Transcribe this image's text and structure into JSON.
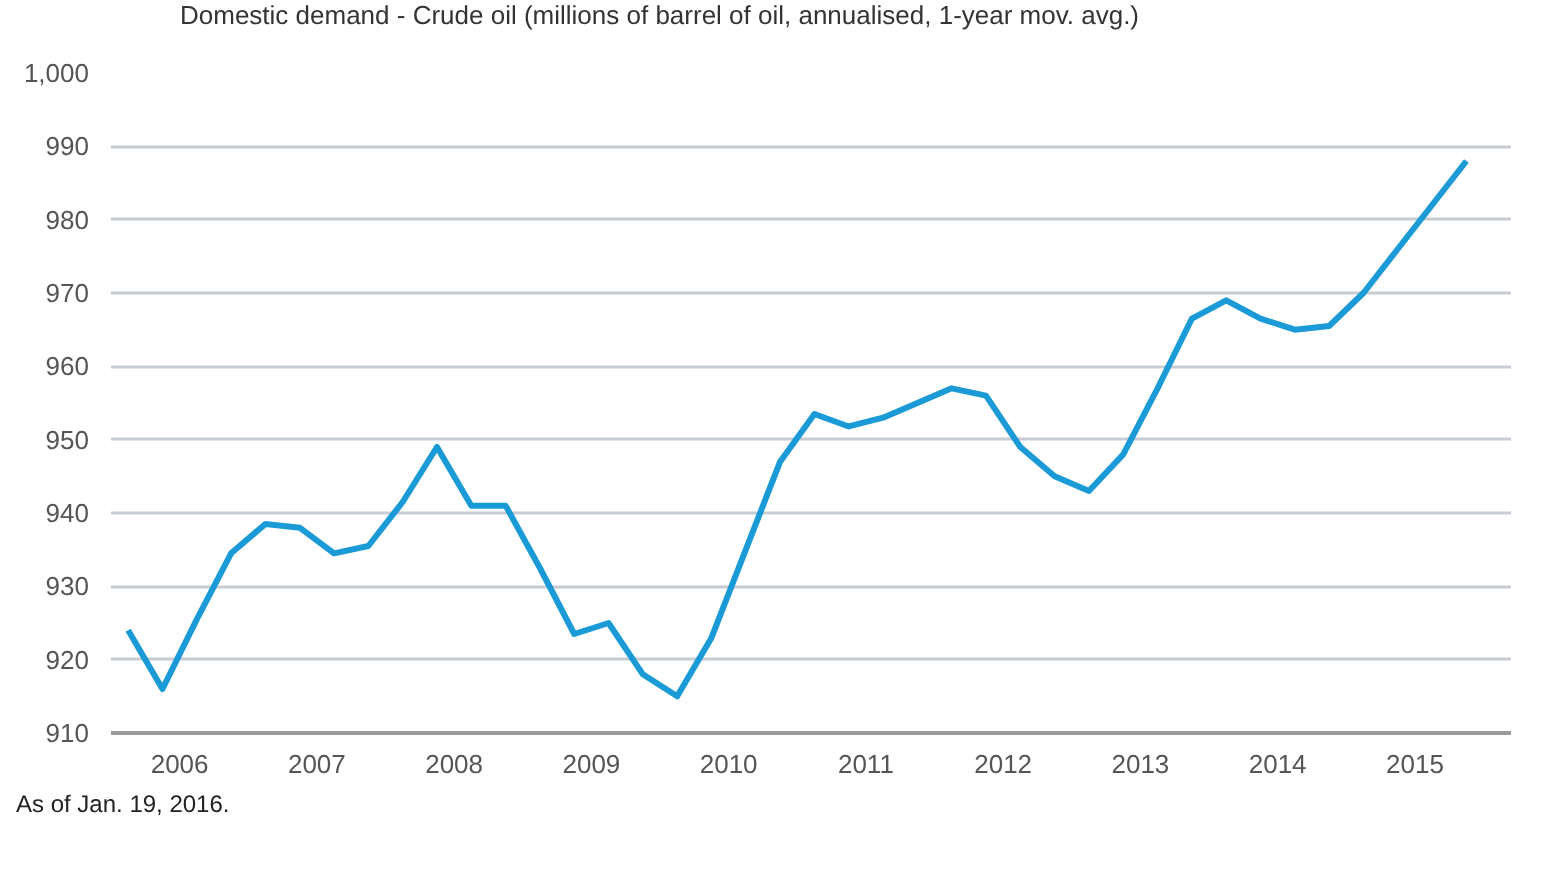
{
  "chart_data": {
    "type": "line",
    "x": [
      2006.125,
      2006.375,
      2006.625,
      2006.875,
      2007.125,
      2007.375,
      2007.625,
      2007.875,
      2008.125,
      2008.375,
      2008.625,
      2008.875,
      2009.125,
      2009.375,
      2009.625,
      2009.875,
      2010.125,
      2010.375,
      2010.625,
      2010.875,
      2011.125,
      2011.375,
      2011.625,
      2011.875,
      2012.125,
      2012.375,
      2012.625,
      2012.875,
      2013.125,
      2013.375,
      2013.625,
      2013.875,
      2014.125,
      2014.375,
      2014.625,
      2014.875,
      2015.125,
      2015.375,
      2015.625,
      2015.875
    ],
    "series": [
      {
        "name": "Domestic demand - Crude oil (millions of barrel of oil, annualised, 1-year mov. avg.)",
        "color": "#1a9ad6",
        "values": [
          924,
          916,
          925.5,
          934.5,
          938.5,
          938,
          934.5,
          935.5,
          941.5,
          949,
          941,
          941,
          932.5,
          923.5,
          925,
          918,
          915,
          923,
          935,
          947,
          953.5,
          951.8,
          953,
          955,
          957,
          956,
          949,
          945,
          943,
          948,
          957,
          966.5,
          969,
          966.5,
          965,
          965.5,
          970,
          976,
          982,
          988
        ]
      }
    ],
    "xlim": [
      2006,
      2016.2
    ],
    "xticks": [
      {
        "value": 2006.5,
        "label": "2006"
      },
      {
        "value": 2007.5,
        "label": "2007"
      },
      {
        "value": 2008.5,
        "label": "2008"
      },
      {
        "value": 2009.5,
        "label": "2009"
      },
      {
        "value": 2010.5,
        "label": "2010"
      },
      {
        "value": 2011.5,
        "label": "2011"
      },
      {
        "value": 2012.5,
        "label": "2012"
      },
      {
        "value": 2013.5,
        "label": "2013"
      },
      {
        "value": 2014.5,
        "label": "2014"
      },
      {
        "value": 2015.5,
        "label": "2015"
      }
    ],
    "ylim": [
      910,
      1000
    ],
    "yticks": [
      910,
      920,
      930,
      940,
      950,
      960,
      970,
      980,
      990,
      {
        "value": 1000,
        "label": "1,000"
      }
    ],
    "grid": "y",
    "legend": "top left",
    "line_style": "solid",
    "annotations": [
      "As of Jan. 19, 2016."
    ]
  }
}
